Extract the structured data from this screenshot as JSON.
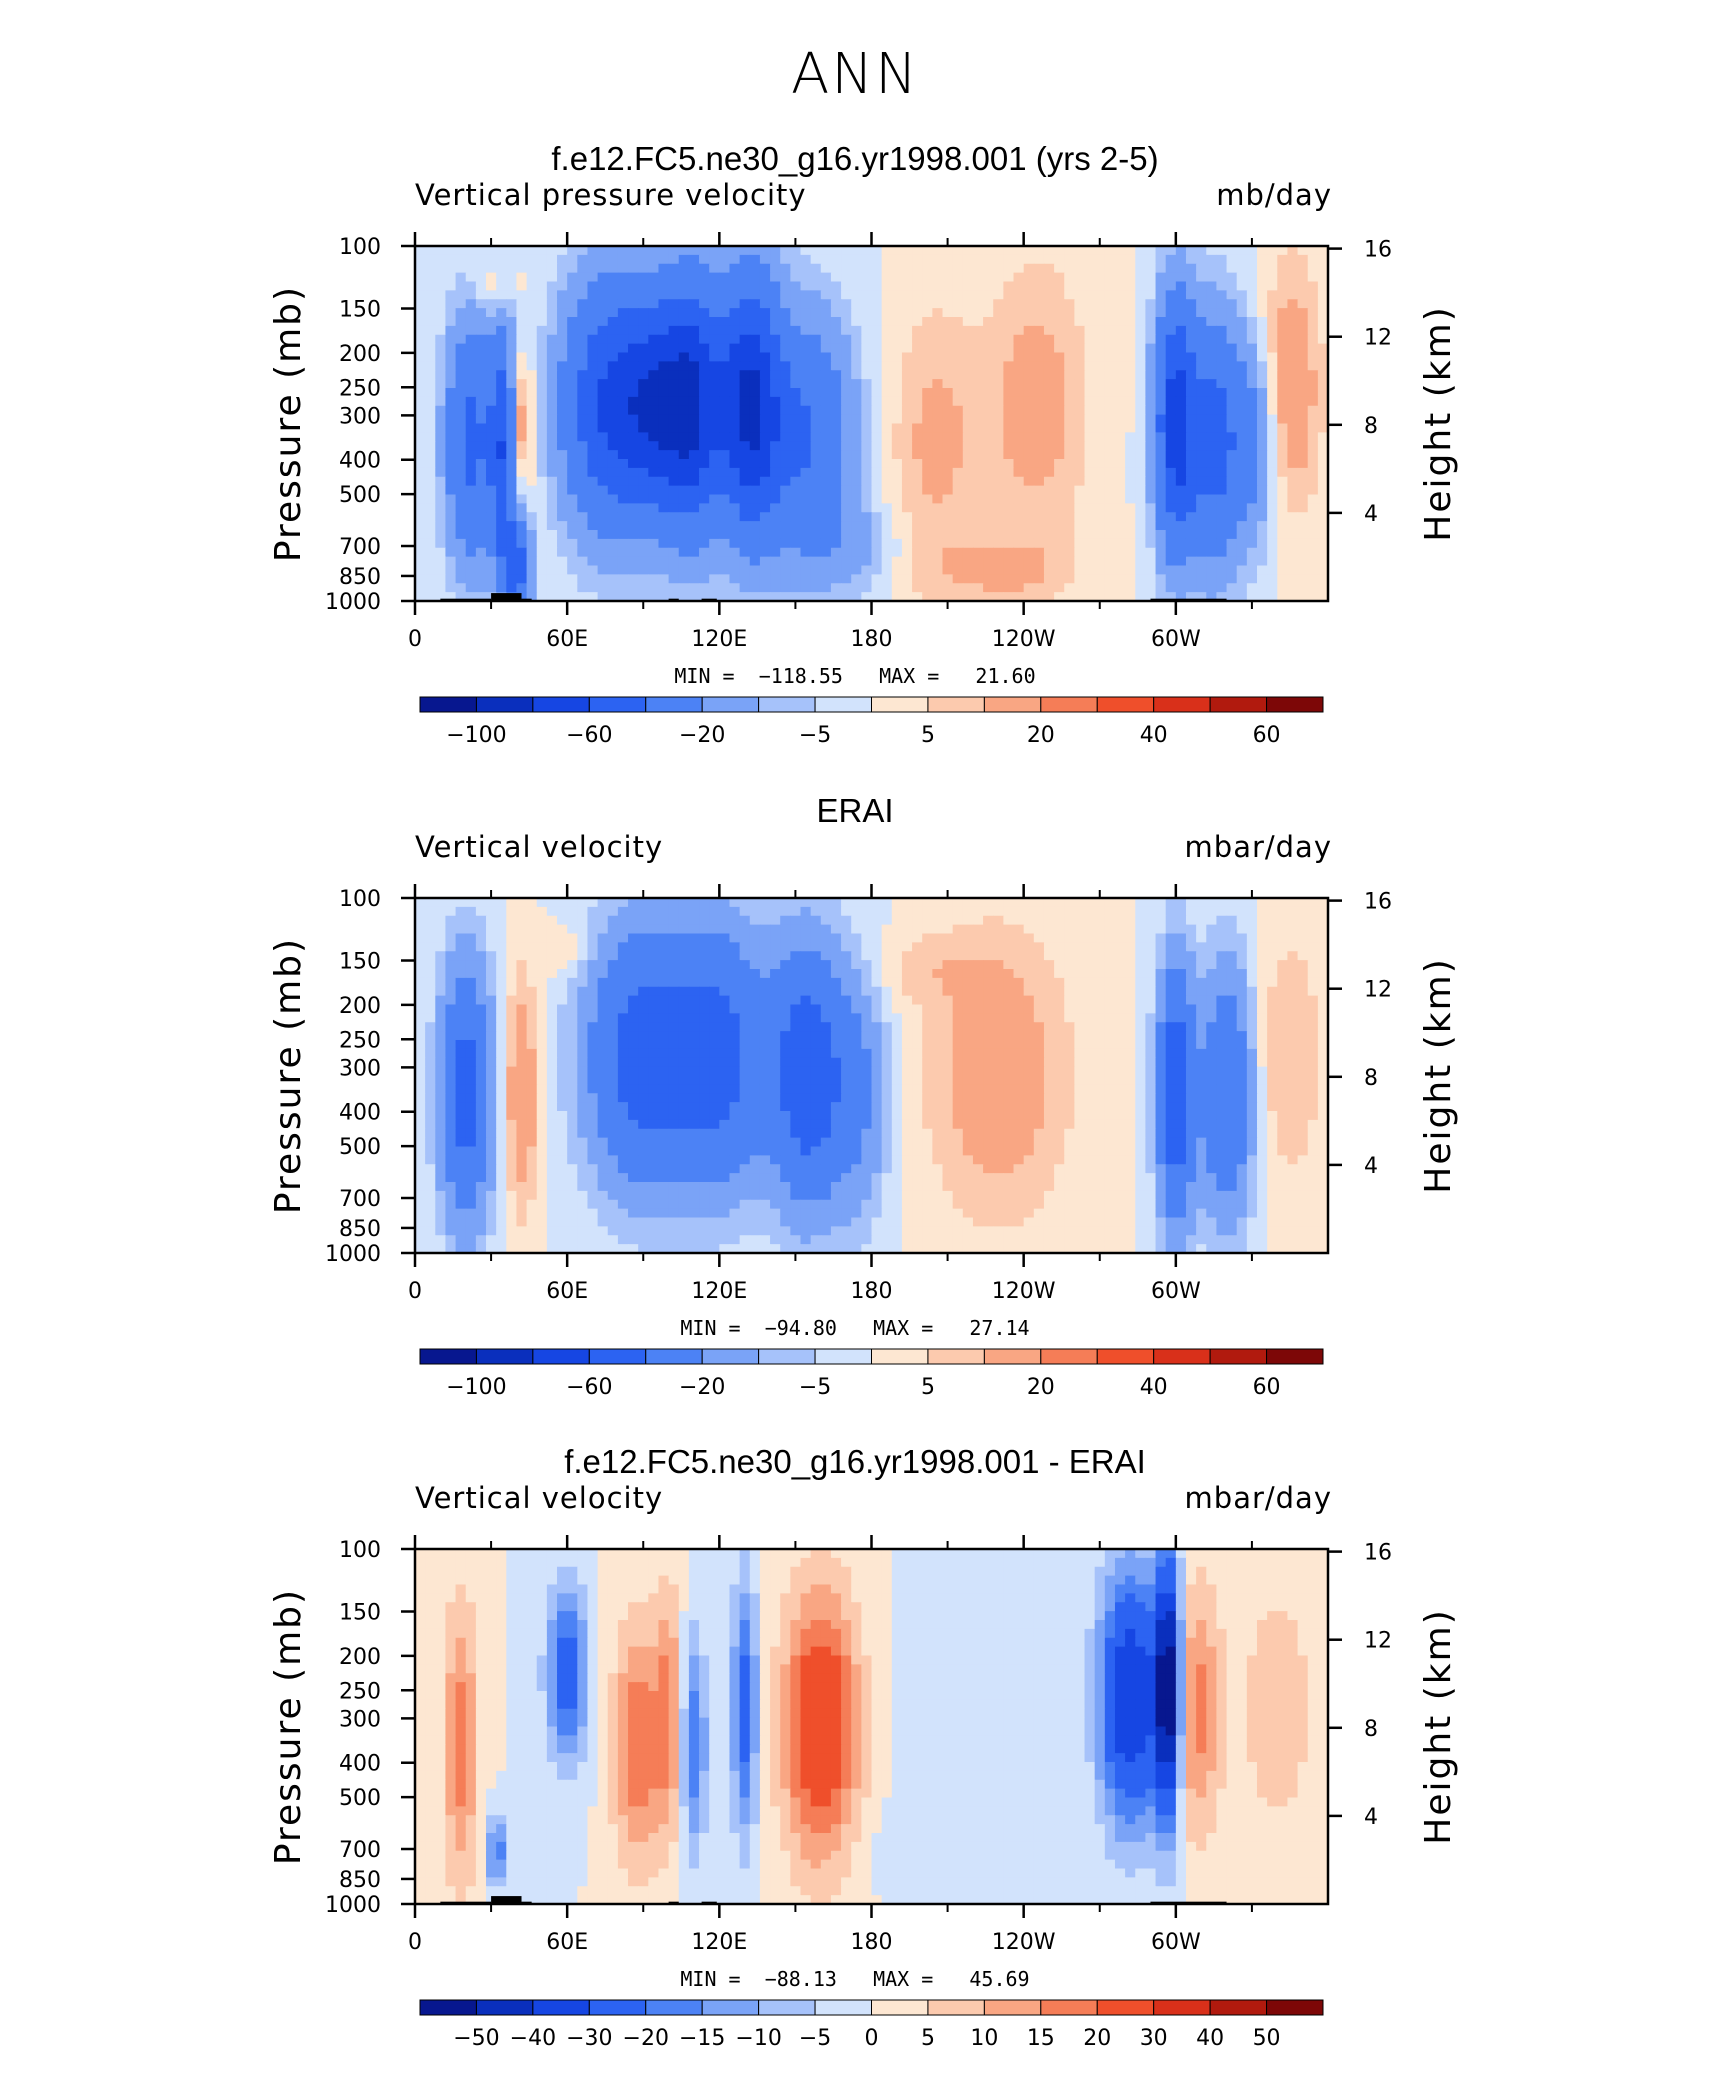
{
  "title": "ANN",
  "colors": {
    "scale": [
      "#07178f",
      "#0a2fbd",
      "#1646e3",
      "#2c63f2",
      "#4c82f5",
      "#7aa3f7",
      "#a6c2fa",
      "#d2e3fc",
      "#fde7d2",
      "#fccaae",
      "#f9a683",
      "#f57d57",
      "#ef4f2b",
      "#d9301a",
      "#b11a0e",
      "#7d0707"
    ],
    "land": "#000000"
  },
  "chart_data": [
    {
      "type": "heatmap",
      "title": "f.e12.FC5.ne30_g16.yr1998.001 (yrs 2-5)",
      "variable_label": "Vertical pressure velocity",
      "units_label": "mb/day",
      "ylabel": "Pressure (mb)",
      "y2label": "Height (km)",
      "min_label": "MIN =  −118.55",
      "max_label": "MAX =   21.60",
      "x_ticks": [
        "0",
        "60E",
        "120E",
        "180",
        "120W",
        "60W"
      ],
      "y_ticks": [
        "100",
        "150",
        "200",
        "250",
        "300",
        "400",
        "500",
        "700",
        "850",
        "1000"
      ],
      "y2_ticks": [
        "16",
        "12",
        "8",
        "4"
      ],
      "colorbar_labels": [
        "−100",
        "−60",
        "−20",
        "−5",
        "5",
        "20",
        "40",
        "60"
      ],
      "colorbar_levels": [
        -100,
        -80,
        -60,
        -40,
        -20,
        -10,
        -5,
        0,
        5,
        10,
        20,
        30,
        40,
        50,
        60
      ],
      "show_land": true
    },
    {
      "type": "heatmap",
      "title": "ERAI",
      "variable_label": "Vertical velocity",
      "units_label": "mbar/day",
      "ylabel": "Pressure (mb)",
      "y2label": "Height (km)",
      "min_label": "MIN =  −94.80",
      "max_label": "MAX =   27.14",
      "x_ticks": [
        "0",
        "60E",
        "120E",
        "180",
        "120W",
        "60W"
      ],
      "y_ticks": [
        "100",
        "150",
        "200",
        "250",
        "300",
        "400",
        "500",
        "700",
        "850",
        "1000"
      ],
      "y2_ticks": [
        "16",
        "12",
        "8",
        "4"
      ],
      "colorbar_labels": [
        "−100",
        "−60",
        "−20",
        "−5",
        "5",
        "20",
        "40",
        "60"
      ],
      "colorbar_levels": [
        -100,
        -80,
        -60,
        -40,
        -20,
        -10,
        -5,
        0,
        5,
        10,
        20,
        30,
        40,
        50,
        60
      ],
      "show_land": false
    },
    {
      "type": "heatmap",
      "title": "f.e12.FC5.ne30_g16.yr1998.001 - ERAI",
      "variable_label": "Vertical velocity",
      "units_label": "mbar/day",
      "ylabel": "Pressure (mb)",
      "y2label": "Height (km)",
      "min_label": "MIN =  −88.13",
      "max_label": "MAX =   45.69",
      "x_ticks": [
        "0",
        "60E",
        "120E",
        "180",
        "120W",
        "60W"
      ],
      "y_ticks": [
        "100",
        "150",
        "200",
        "250",
        "300",
        "400",
        "500",
        "700",
        "850",
        "1000"
      ],
      "y2_ticks": [
        "16",
        "12",
        "8",
        "4"
      ],
      "colorbar_labels": [
        "−50",
        "−40",
        "−30",
        "−20",
        "−15",
        "−10",
        "−5",
        "0",
        "5",
        "10",
        "15",
        "20",
        "30",
        "40",
        "50"
      ],
      "colorbar_levels": [
        -50,
        -40,
        -30,
        -20,
        -15,
        -10,
        -5,
        0,
        5,
        10,
        15,
        20,
        30,
        40,
        50
      ],
      "show_land": true
    }
  ]
}
